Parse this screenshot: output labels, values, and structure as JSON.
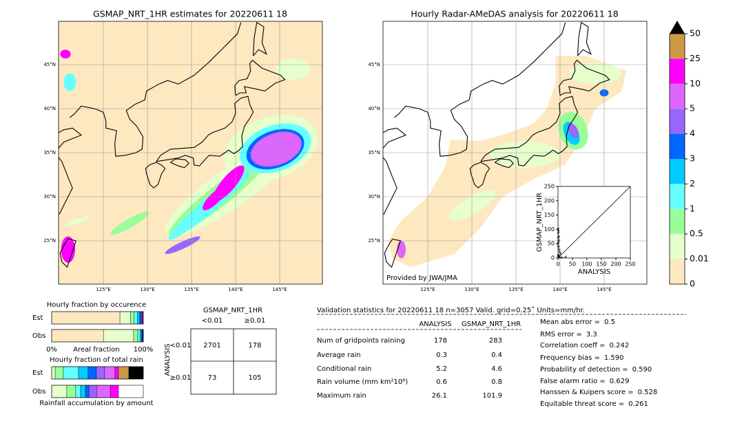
{
  "maps": [
    {
      "title": "GSMAP_NRT_1HR estimates for 20220611 18",
      "lon_labels": [
        "125°E",
        "130°E",
        "135°E",
        "140°E",
        "145°E"
      ],
      "lat_labels": [
        "45°N",
        "40°N",
        "35°N",
        "30°N",
        "25°N"
      ]
    },
    {
      "title": "Hourly Radar-AMeDAS analysis for 20220611 18",
      "lon_labels": [
        "125°E",
        "130°E",
        "135°E",
        "140°E",
        "145°E"
      ],
      "lat_labels": [
        "45°N",
        "40°N",
        "35°N",
        "30°N",
        "25°N"
      ],
      "credit": "Provided by JWA/JMA"
    }
  ],
  "chart_data": [
    {
      "type": "colorbar",
      "ticks": [
        0,
        0.01,
        0.5,
        1,
        2,
        3,
        4,
        5,
        10,
        25,
        50
      ],
      "colors": [
        "#fde8c0",
        "#e6ffcc",
        "#98ff98",
        "#66ffff",
        "#00ccff",
        "#0066ff",
        "#9966ff",
        "#dd66ff",
        "#ff00ff",
        "#cc9944"
      ],
      "extend_color": "#000000"
    },
    {
      "type": "scatter",
      "xlabel": "ANALYSIS",
      "ylabel": "GSMAP_NRT_1HR",
      "x": [
        1.2,
        2.1,
        1.5,
        2.8,
        0.8,
        3.5,
        1.9,
        0.5,
        2.5,
        4.2,
        6.1,
        8.3,
        1.1,
        3.0,
        0.4,
        5.2,
        12.5,
        26.1
      ],
      "y": [
        101.9,
        95,
        88,
        76,
        70,
        62,
        55,
        48,
        40,
        30,
        22,
        15,
        10,
        8,
        5,
        3,
        2,
        4
      ],
      "xlim": [
        0,
        250
      ],
      "ylim": [
        0,
        250
      ],
      "xticks": [
        0,
        50,
        100,
        150,
        200,
        250
      ],
      "yticks": [
        0,
        50,
        100,
        150,
        200,
        250
      ],
      "color": "#000000"
    },
    {
      "type": "stacked_bar",
      "title": "Hourly fraction by occurence",
      "categories": [
        "Est",
        "Obs"
      ],
      "xlabel": "Areal fraction",
      "xlim": [
        0,
        1
      ],
      "xticks": [
        {
          "value": 0,
          "label": "0%"
        },
        {
          "value": 1,
          "label": "100%"
        }
      ],
      "series": [
        {
          "color": "#fde8c0",
          "values": [
            0.745,
            0.565
          ]
        },
        {
          "color": "#e6ffcc",
          "values": [
            0.115,
            0.33
          ]
        },
        {
          "color": "#98ff98",
          "values": [
            0.04,
            0.045
          ]
        },
        {
          "color": "#66ffff",
          "values": [
            0.035,
            0.025
          ]
        },
        {
          "color": "#00ccff",
          "values": [
            0.025,
            0.015
          ]
        },
        {
          "color": "#0066ff",
          "values": [
            0.015,
            0.01
          ]
        },
        {
          "color": "#9966ff",
          "values": [
            0.01,
            0.005
          ]
        },
        {
          "color": "#dd66ff",
          "values": [
            0.005,
            0.003
          ]
        },
        {
          "color": "#ff00ff",
          "values": [
            0.008,
            0.002
          ]
        },
        {
          "color": "#cc9944",
          "values": [
            0.002,
            0
          ]
        }
      ]
    },
    {
      "type": "stacked_bar",
      "title": "Hourly fraction of total rain",
      "categories": [
        "Est",
        "Obs"
      ],
      "xlabel": "Rainfall accumulation by amount",
      "xlim": [
        0,
        1
      ],
      "series": [
        {
          "color": "#e6ffcc",
          "values": [
            0.038,
            0.165
          ]
        },
        {
          "color": "#98ff98",
          "values": [
            0.09,
            0.098
          ]
        },
        {
          "color": "#66ffff",
          "values": [
            0.165,
            0.053
          ]
        },
        {
          "color": "#00ccff",
          "values": [
            0.105,
            0.053
          ]
        },
        {
          "color": "#0066ff",
          "values": [
            0.09,
            0.038
          ]
        },
        {
          "color": "#9966ff",
          "values": [
            0.09,
            0.083
          ]
        },
        {
          "color": "#dd66ff",
          "values": [
            0.113,
            0.15
          ]
        },
        {
          "color": "#ff00ff",
          "values": [
            0.038,
            0.09
          ]
        },
        {
          "color": "#cc9944",
          "values": [
            0.113,
            0
          ]
        },
        {
          "color": "#000000",
          "values": [
            0.158,
            0
          ]
        }
      ]
    }
  ],
  "contingency": {
    "title": "GSMAP_NRT_1HR",
    "col_labels": [
      "<0.01",
      "≥0.01"
    ],
    "row_title": "ANALYSIS",
    "row_labels": [
      "<0.01",
      "≥0.01"
    ],
    "cells": [
      [
        2701,
        178
      ],
      [
        73,
        105
      ]
    ]
  },
  "stats": {
    "title": "Validation statistics for 20220611 18  n=3057 Valid. grid=0.25˚ Units=mm/hr.",
    "headers": [
      "ANALYSIS",
      "GSMAP_NRT_1HR"
    ],
    "rows": [
      {
        "label": "Num of gridpoints raining",
        "values": [
          178,
          283
        ]
      },
      {
        "label": "Average rain",
        "values": [
          0.3,
          0.4
        ]
      },
      {
        "label": "Conditional rain",
        "values": [
          5.2,
          4.6
        ]
      },
      {
        "label": "Rain volume (mm km²10⁶)",
        "values": [
          0.6,
          0.8
        ]
      },
      {
        "label": "Maximum rain",
        "values": [
          26.1,
          101.9
        ]
      }
    ],
    "scores": [
      {
        "label": "Mean abs error =",
        "value": "0.5"
      },
      {
        "label": "RMS error =",
        "value": "3.3"
      },
      {
        "label": "Correlation coeff =",
        "value": "0.242"
      },
      {
        "label": "Frequency bias =",
        "value": "1.590"
      },
      {
        "label": "Probability of detection =",
        "value": "0.590"
      },
      {
        "label": "False alarm ratio =",
        "value": "0.629"
      },
      {
        "label": "Hanssen & Kuipers score =",
        "value": "0.528"
      },
      {
        "label": "Equitable threat score =",
        "value": "0.261"
      }
    ]
  }
}
